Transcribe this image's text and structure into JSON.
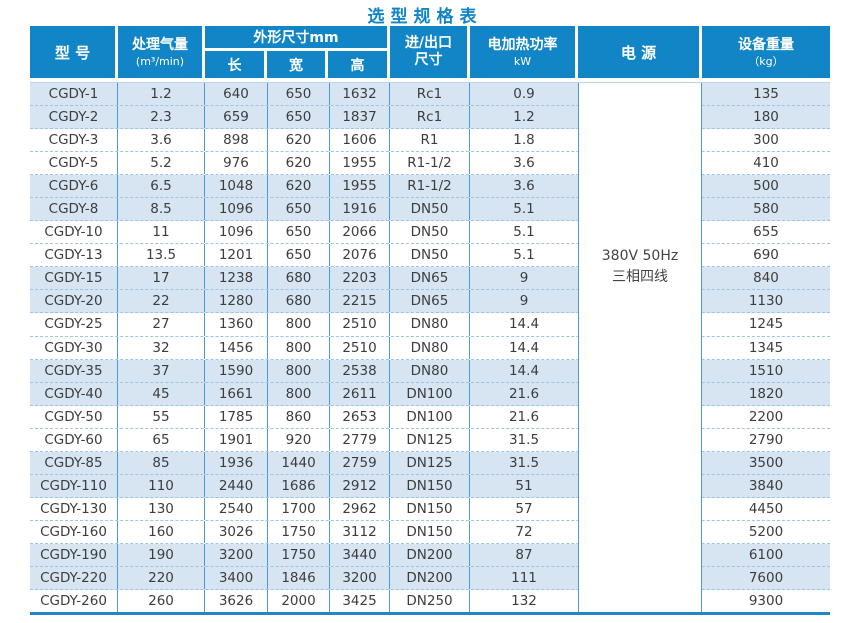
{
  "title": "选型规格表",
  "table": {
    "headers": {
      "model": "型 号",
      "airflow_line1": "处理气量",
      "airflow_line2": "(m³/min)",
      "dims": "外形尺寸mm",
      "dim_length": "长",
      "dim_width": "宽",
      "dim_height": "高",
      "inlet_line1": "进/出口",
      "inlet_line2": "尺寸",
      "power_line1": "电加热功率",
      "power_line2": "kW",
      "supply": "电 源",
      "weight_line1": "设备重量",
      "weight_line2": "（kg）"
    },
    "column_keys": [
      "model",
      "airflow",
      "length",
      "width",
      "height",
      "inlet",
      "power",
      "weight"
    ],
    "power_supply": [
      "380V 50Hz",
      "三相四线"
    ],
    "rows": [
      [
        "CGDY-1",
        "1.2",
        "640",
        "650",
        "1632",
        "Rc1",
        "0.9",
        "135"
      ],
      [
        "CGDY-2",
        "2.3",
        "659",
        "650",
        "1837",
        "Rc1",
        "1.2",
        "180"
      ],
      [
        "CGDY-3",
        "3.6",
        "898",
        "620",
        "1606",
        "R1",
        "1.8",
        "300"
      ],
      [
        "CGDY-5",
        "5.2",
        "976",
        "620",
        "1955",
        "R1-1/2",
        "3.6",
        "410"
      ],
      [
        "CGDY-6",
        "6.5",
        "1048",
        "620",
        "1955",
        "R1-1/2",
        "3.6",
        "500"
      ],
      [
        "CGDY-8",
        "8.5",
        "1096",
        "650",
        "1916",
        "DN50",
        "5.1",
        "580"
      ],
      [
        "CGDY-10",
        "11",
        "1096",
        "650",
        "2066",
        "DN50",
        "5.1",
        "655"
      ],
      [
        "CGDY-13",
        "13.5",
        "1201",
        "650",
        "2076",
        "DN50",
        "5.1",
        "690"
      ],
      [
        "CGDY-15",
        "17",
        "1238",
        "680",
        "2203",
        "DN65",
        "9",
        "840"
      ],
      [
        "CGDY-20",
        "22",
        "1280",
        "680",
        "2215",
        "DN65",
        "9",
        "1130"
      ],
      [
        "CGDY-25",
        "27",
        "1360",
        "800",
        "2510",
        "DN80",
        "14.4",
        "1245"
      ],
      [
        "CGDY-30",
        "32",
        "1456",
        "800",
        "2510",
        "DN80",
        "14.4",
        "1345"
      ],
      [
        "CGDY-35",
        "37",
        "1590",
        "800",
        "2538",
        "DN80",
        "14.4",
        "1510"
      ],
      [
        "CGDY-40",
        "45",
        "1661",
        "800",
        "2611",
        "DN100",
        "21.6",
        "1820"
      ],
      [
        "CGDY-50",
        "55",
        "1785",
        "860",
        "2653",
        "DN100",
        "21.6",
        "2200"
      ],
      [
        "CGDY-60",
        "65",
        "1901",
        "920",
        "2779",
        "DN125",
        "31.5",
        "2790"
      ],
      [
        "CGDY-85",
        "85",
        "1936",
        "1440",
        "2759",
        "DN125",
        "31.5",
        "3500"
      ],
      [
        "CGDY-110",
        "110",
        "2440",
        "1686",
        "2912",
        "DN150",
        "51",
        "3840"
      ],
      [
        "CGDY-130",
        "130",
        "2540",
        "1700",
        "2962",
        "DN150",
        "57",
        "4450"
      ],
      [
        "CGDY-160",
        "160",
        "3026",
        "1750",
        "3112",
        "DN150",
        "72",
        "5200"
      ],
      [
        "CGDY-190",
        "190",
        "3200",
        "1750",
        "3440",
        "DN200",
        "87",
        "6100"
      ],
      [
        "CGDY-220",
        "220",
        "3400",
        "1846",
        "3200",
        "DN200",
        "111",
        "7600"
      ],
      [
        "CGDY-260",
        "260",
        "3626",
        "2000",
        "3425",
        "DN250",
        "132",
        "9300"
      ]
    ]
  },
  "colors": {
    "header_blue": "#1285c6",
    "title_blue": "#1285c6",
    "row_blue": "#d7e5f3",
    "grid_line": "#4d9ad0",
    "dash_line": "#9cc4e4",
    "bottom_border": "#2188c8",
    "body_text": "#3d3d3d"
  }
}
